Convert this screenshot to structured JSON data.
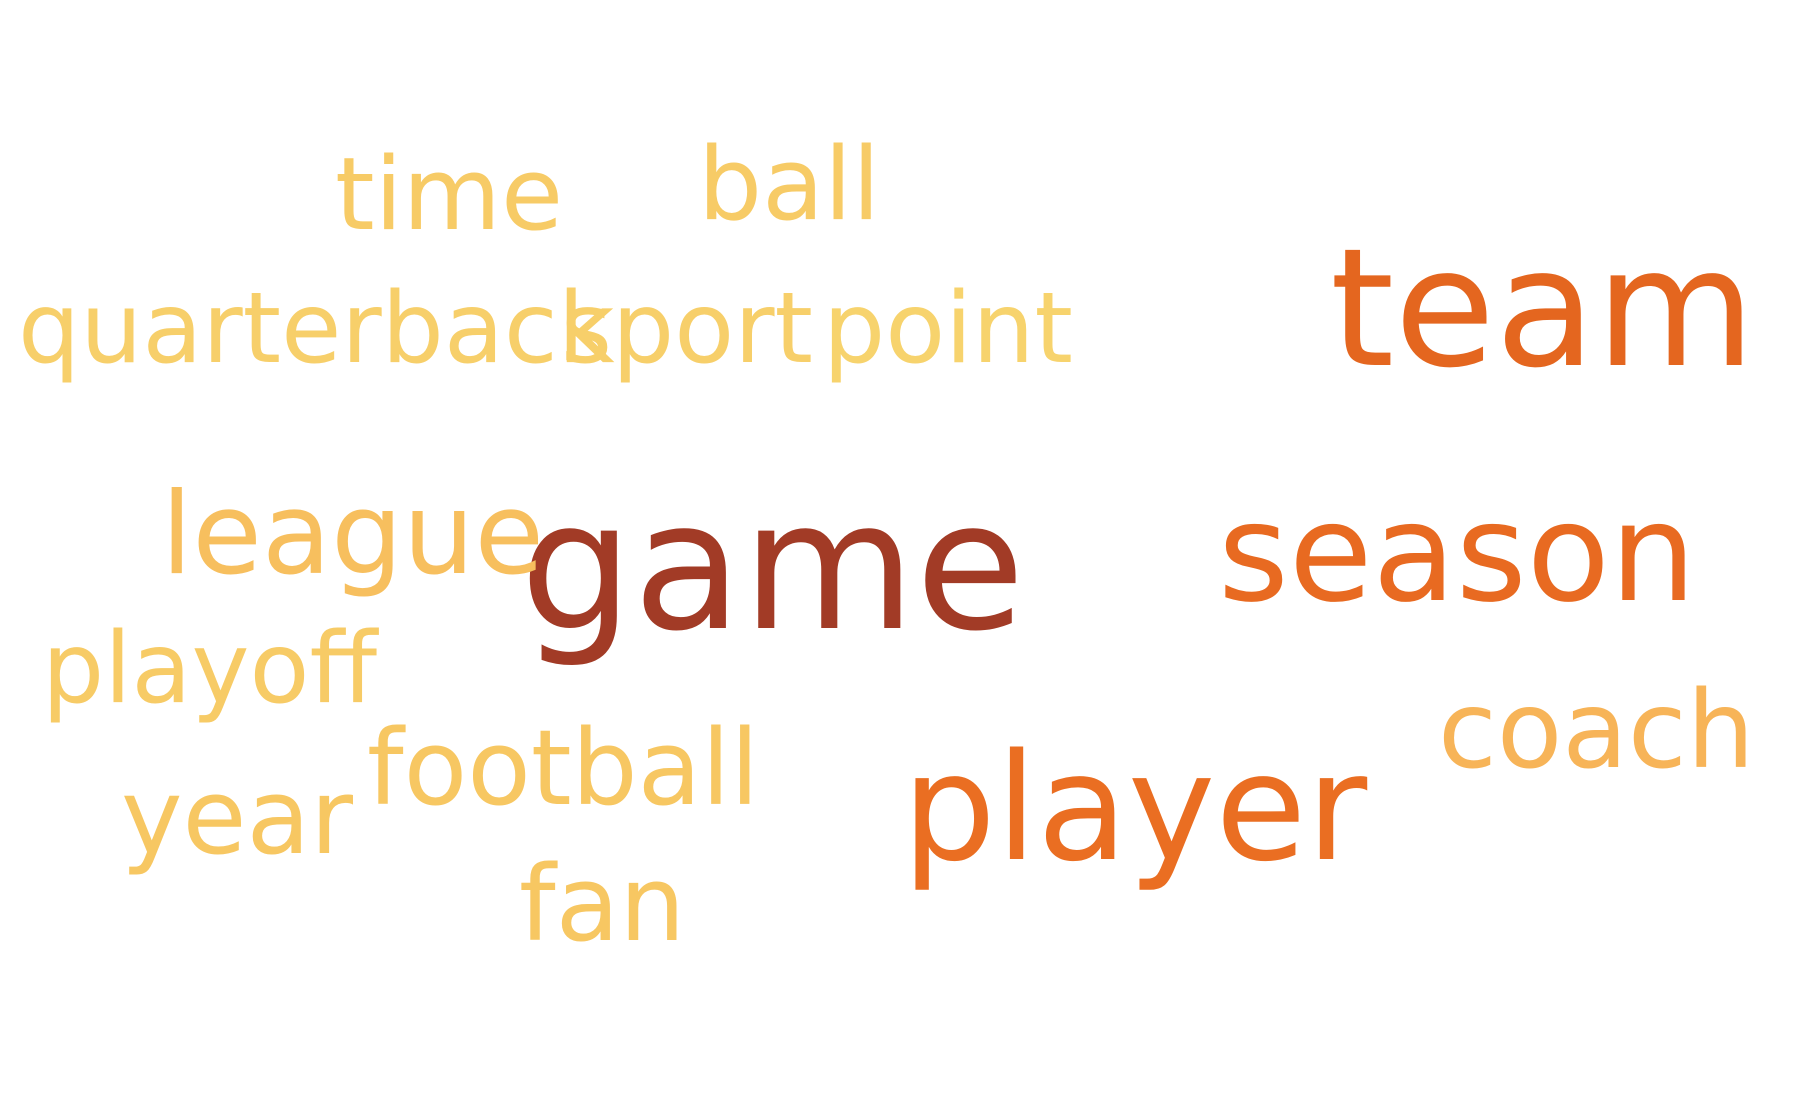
{
  "words": {
    "game": {
      "text": "game",
      "color": "#A23B26"
    },
    "team": {
      "text": "team",
      "color": "#E4661F"
    },
    "season": {
      "text": "season",
      "color": "#E86A21"
    },
    "player": {
      "text": "player",
      "color": "#EA6E22"
    },
    "coach": {
      "text": "coach",
      "color": "#F7B458"
    },
    "time": {
      "text": "time",
      "color": "#F7CB66"
    },
    "ball": {
      "text": "ball",
      "color": "#F7CB66"
    },
    "quarterback": {
      "text": "quarterback",
      "color": "#F7CF6A"
    },
    "sport": {
      "text": "sport",
      "color": "#F7CF6A"
    },
    "point": {
      "text": "point",
      "color": "#F7D36D"
    },
    "league": {
      "text": "league",
      "color": "#F7BF5E"
    },
    "playoff": {
      "text": "playoff",
      "color": "#F7CB66"
    },
    "football": {
      "text": "football",
      "color": "#F7C762"
    },
    "year": {
      "text": "year",
      "color": "#F7C762"
    },
    "fan": {
      "text": "fan",
      "color": "#F7C762"
    }
  }
}
